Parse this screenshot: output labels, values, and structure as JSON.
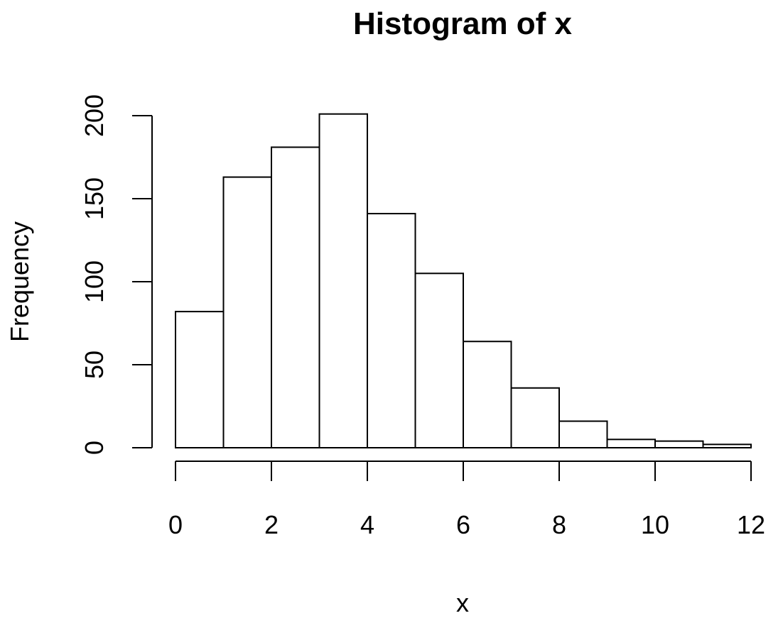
{
  "chart_data": {
    "type": "bar",
    "title": "Histogram of x",
    "xlabel": "x",
    "ylabel": "Frequency",
    "bin_edges": [
      0,
      1,
      2,
      3,
      4,
      5,
      6,
      7,
      8,
      9,
      10,
      11,
      12
    ],
    "values": [
      82,
      163,
      181,
      201,
      141,
      105,
      64,
      36,
      16,
      5,
      4,
      2
    ],
    "xlim": [
      0,
      12
    ],
    "ylim": [
      0,
      200
    ],
    "x_ticks": [
      0,
      2,
      4,
      6,
      8,
      10,
      12
    ],
    "x_tick_labels": [
      "0",
      "2",
      "4",
      "6",
      "8",
      "10",
      "12"
    ],
    "y_ticks": [
      0,
      50,
      100,
      150,
      200
    ],
    "y_tick_labels": [
      "0",
      "50",
      "100",
      "150",
      "200"
    ],
    "grid": false,
    "bar_fill": "#ffffff",
    "bar_stroke": "#000000"
  }
}
